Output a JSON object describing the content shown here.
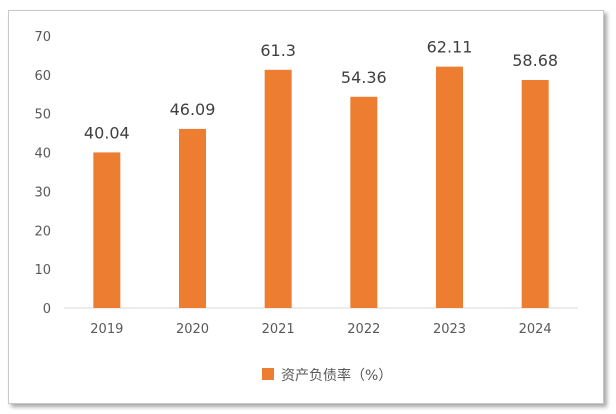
{
  "chart_data": {
    "type": "bar",
    "categories": [
      "2019",
      "2020",
      "2021",
      "2022",
      "2023",
      "2024"
    ],
    "series": [
      {
        "name": "资产负债率（%）",
        "values": [
          40.04,
          46.09,
          61.3,
          54.36,
          62.11,
          58.68
        ],
        "labels": [
          "40.04",
          "46.09",
          "61.3",
          "54.36",
          "62.11",
          "58.68"
        ],
        "color": "#ED7D31"
      }
    ],
    "ylim": [
      0,
      70
    ],
    "yticks": [
      0,
      10,
      20,
      30,
      40,
      50,
      60,
      70
    ],
    "grid": false,
    "legend": "bottom"
  }
}
